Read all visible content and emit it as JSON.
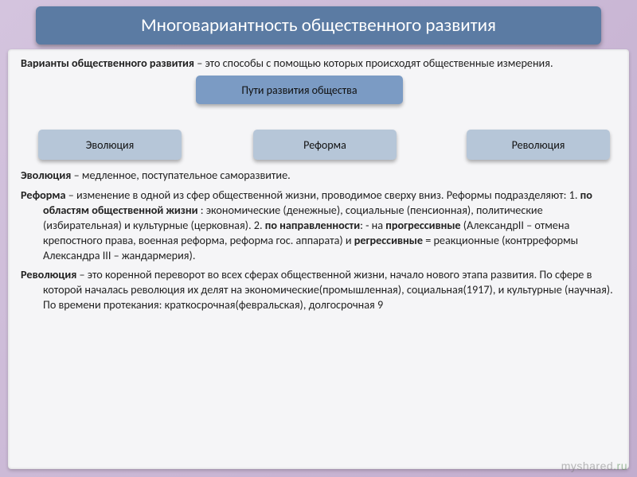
{
  "title": "Многовариантность общественного развития",
  "intro_bold": "Варианты общественного развития",
  "intro_rest": " – это способы с помощью которых происходят общественные измерения.",
  "diagram": {
    "top": "Пути развития общества",
    "left": "Эволюция",
    "center": "Реформа",
    "right": "Революция"
  },
  "p_evo_lead": "Эволюция",
  "p_evo_rest": " – медленное, поступательное саморазвитие.",
  "p_ref_lead": "Реформа",
  "p_ref_rest1": " – изменение в одной из сфер общественной жизни, проводимое сверху вниз. Реформы подразделяют: 1. ",
  "p_ref_b1": "по областям общественной жизни",
  "p_ref_rest2": " : экономические (денежные), социальные (пенсионная), политические (избирательная) и культурные (церковная). 2. ",
  "p_ref_b2": "по направленности",
  "p_ref_rest3": ": - на ",
  "p_ref_b3": "прогрессивные",
  "p_ref_rest4": " (АлександрII – отмена крепостного права, военная реформа, реформа гос. аппарата) и ",
  "p_ref_b4": "регрессивные",
  "p_ref_rest5": " = реакционные (контрреформы Александра III – жандармерия).",
  "p_rev_lead": "Революция",
  "p_rev_rest": " – это коренной переворот во всех сферах общественной жизни, начало нового этапа развития. По сфере в которой началась революция их делят на экономические(промышленная), социальная(1917),  и культурные (научная). По времени протекания: краткосрочная(февральская), долгосрочная 9",
  "watermark_plain": "myshared",
  "watermark_suffix": ".ru",
  "colors": {
    "title_bg": "#5b7ba3",
    "box_top_bg": "#7b9bc4",
    "box_bottom_bg": "#b6c6d8",
    "slide_bg_from": "#d4c4de",
    "slide_bg_to": "#c2adce",
    "content_bg": "#f5f5f7"
  }
}
